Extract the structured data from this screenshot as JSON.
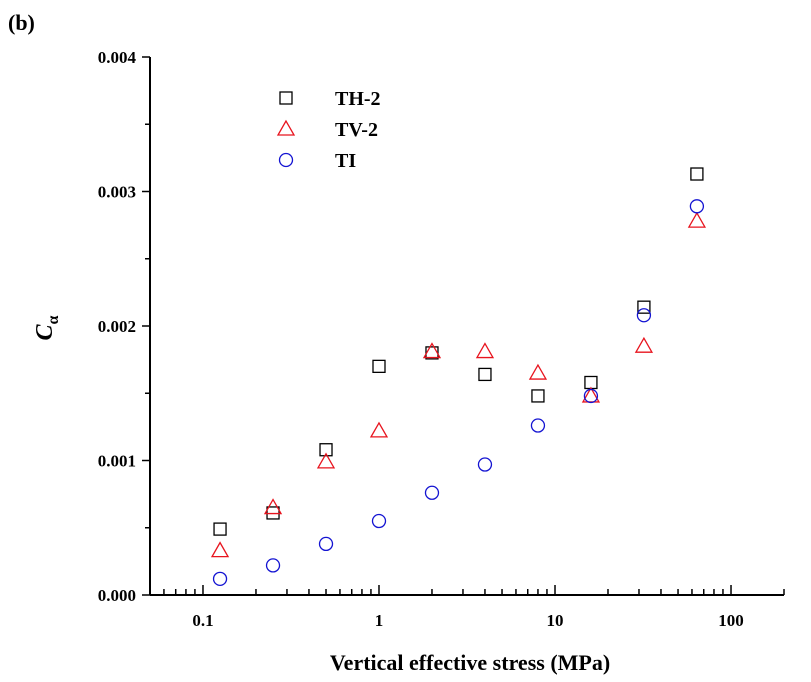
{
  "panel_label": "(b)",
  "chart_data": {
    "type": "scatter",
    "xlabel": "Vertical effective stress (MPa)",
    "ylabel_main": "C",
    "ylabel_sub": "α",
    "xscale": "log",
    "xlim": [
      0.05,
      200
    ],
    "ylim": [
      0,
      0.004
    ],
    "x_ticks": [
      {
        "value": 0.1,
        "label": "0.1"
      },
      {
        "value": 1,
        "label": "1"
      },
      {
        "value": 10,
        "label": "10"
      },
      {
        "value": 100,
        "label": "100"
      }
    ],
    "y_ticks": [
      {
        "value": 0,
        "label": "0.000"
      },
      {
        "value": 0.001,
        "label": "0.001"
      },
      {
        "value": 0.002,
        "label": "0.002"
      },
      {
        "value": 0.003,
        "label": "0.003"
      },
      {
        "value": 0.004,
        "label": "0.004"
      }
    ],
    "grid": false,
    "legend": "top-left",
    "series": [
      {
        "name": "TH-2",
        "marker": "square",
        "color": "#000000",
        "points": [
          [
            0.125,
            0.00049
          ],
          [
            0.25,
            0.00061
          ],
          [
            0.5,
            0.00108
          ],
          [
            1,
            0.0017
          ],
          [
            2,
            0.0018
          ],
          [
            4,
            0.00164
          ],
          [
            8,
            0.00148
          ],
          [
            16,
            0.00158
          ],
          [
            32,
            0.00214
          ],
          [
            64,
            0.00313
          ]
        ]
      },
      {
        "name": "TV-2",
        "marker": "triangle",
        "color": "#e8141e",
        "points": [
          [
            0.125,
            0.00033
          ],
          [
            0.25,
            0.00065
          ],
          [
            0.5,
            0.00099
          ],
          [
            1,
            0.00122
          ],
          [
            2,
            0.00181
          ],
          [
            4,
            0.00181
          ],
          [
            8,
            0.00165
          ],
          [
            16,
            0.00148
          ],
          [
            32,
            0.00185
          ],
          [
            64,
            0.00278
          ]
        ]
      },
      {
        "name": "TI",
        "marker": "circle",
        "color": "#1414d2",
        "points": [
          [
            0.125,
            0.00012
          ],
          [
            0.25,
            0.00022
          ],
          [
            0.5,
            0.00038
          ],
          [
            1,
            0.00055
          ],
          [
            2,
            0.00076
          ],
          [
            4,
            0.00097
          ],
          [
            8,
            0.00126
          ],
          [
            16,
            0.00148
          ],
          [
            32,
            0.00208
          ],
          [
            64,
            0.00289
          ]
        ]
      }
    ]
  }
}
